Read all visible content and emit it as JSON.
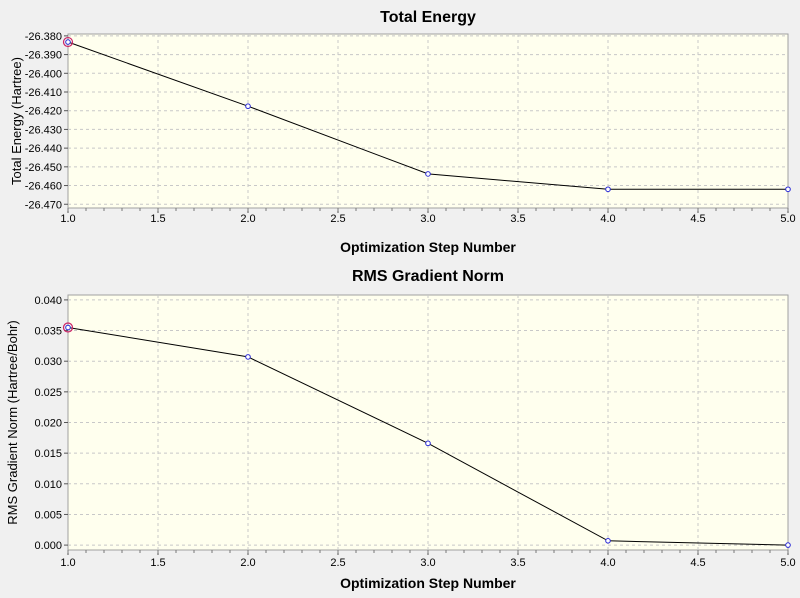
{
  "colors": {
    "background": "#f0f0f0",
    "plot_background": "#ffffee",
    "grid": "#c8c8c8",
    "line": "#000000",
    "marker": "#2b2bd6",
    "selected_marker": "#cc2266"
  },
  "chart_data": [
    {
      "type": "line",
      "title": "Total Energy",
      "xlabel": "Optimization Step Number",
      "ylabel": "Total Energy (Hartree)",
      "xlim": [
        1.0,
        5.0
      ],
      "ylim": [
        -26.472,
        -26.379
      ],
      "grid": true,
      "x_ticks": [
        "1.0",
        "1.5",
        "2.0",
        "2.5",
        "3.0",
        "3.5",
        "4.0",
        "4.5",
        "5.0"
      ],
      "y_ticks": [
        "-26.380",
        "-26.390",
        "-26.400",
        "-26.410",
        "-26.420",
        "-26.430",
        "-26.440",
        "-26.450",
        "-26.460",
        "-26.470"
      ],
      "x": [
        1,
        2,
        3,
        4,
        5
      ],
      "y": [
        -26.3833,
        -26.4176,
        -26.4538,
        -26.462,
        -26.462
      ],
      "selected_point": 1
    },
    {
      "type": "line",
      "title": "RMS Gradient Norm",
      "xlabel": "Optimization Step Number",
      "ylabel": "RMS Gradient Norm (Hartree/Bohr)",
      "xlim": [
        1.0,
        5.0
      ],
      "ylim": [
        -0.0008,
        0.0408
      ],
      "grid": true,
      "x_ticks": [
        "1.0",
        "1.5",
        "2.0",
        "2.5",
        "3.0",
        "3.5",
        "4.0",
        "4.5",
        "5.0"
      ],
      "y_ticks": [
        "0.040",
        "0.035",
        "0.030",
        "0.025",
        "0.020",
        "0.015",
        "0.010",
        "0.005",
        "0.000"
      ],
      "x": [
        1,
        2,
        3,
        4,
        5
      ],
      "y": [
        0.0355,
        0.0307,
        0.0166,
        0.0007,
        0.0
      ],
      "selected_point": 1
    }
  ]
}
